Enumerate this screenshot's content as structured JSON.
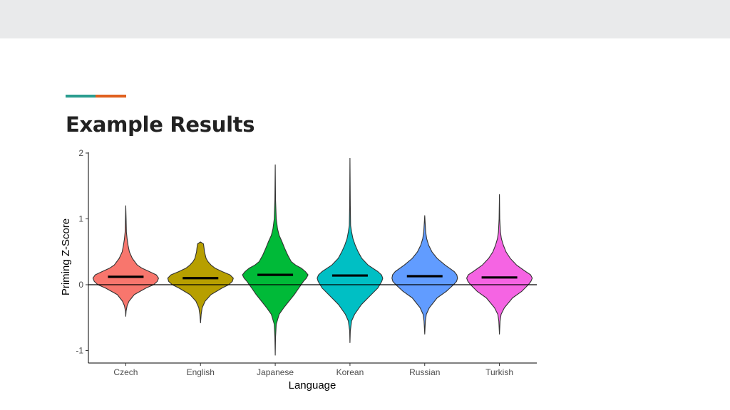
{
  "slide": {
    "title": "Example Results",
    "accent_colors": [
      "#2a9d8f",
      "#e0601e"
    ],
    "header_band_color": "#e9eaeb"
  },
  "chart_data": {
    "type": "violin",
    "xlabel": "Language",
    "ylabel": "Priming Z-Score",
    "ylim": [
      -1.2,
      2.05
    ],
    "yticks": [
      -1,
      0,
      1,
      2
    ],
    "reference_line": 0,
    "grid": false,
    "legend": "none",
    "categories": [
      "Czech",
      "English",
      "Japanese",
      "Korean",
      "Russian",
      "Turkish"
    ],
    "series": [
      {
        "category": "Czech",
        "color": "#f8766d",
        "median": 0.12,
        "min": -0.48,
        "max": 1.2,
        "profile": [
          [
            -0.48,
            0.0
          ],
          [
            -0.4,
            0.01
          ],
          [
            -0.32,
            0.04
          ],
          [
            -0.25,
            0.1
          ],
          [
            -0.15,
            0.26
          ],
          [
            -0.05,
            0.62
          ],
          [
            0.0,
            0.85
          ],
          [
            0.05,
            0.96
          ],
          [
            0.1,
            1.0
          ],
          [
            0.15,
            0.93
          ],
          [
            0.2,
            0.72
          ],
          [
            0.25,
            0.5
          ],
          [
            0.3,
            0.35
          ],
          [
            0.4,
            0.2
          ],
          [
            0.5,
            0.11
          ],
          [
            0.6,
            0.07
          ],
          [
            0.7,
            0.04
          ],
          [
            0.8,
            0.02
          ],
          [
            1.0,
            0.01
          ],
          [
            1.2,
            0.0
          ]
        ]
      },
      {
        "category": "English",
        "color": "#b79f00",
        "median": 0.1,
        "min": -0.58,
        "max": 0.65,
        "profile": [
          [
            -0.58,
            0.0
          ],
          [
            -0.45,
            0.02
          ],
          [
            -0.35,
            0.05
          ],
          [
            -0.25,
            0.14
          ],
          [
            -0.15,
            0.32
          ],
          [
            -0.05,
            0.66
          ],
          [
            0.0,
            0.86
          ],
          [
            0.05,
            0.97
          ],
          [
            0.1,
            1.0
          ],
          [
            0.15,
            0.9
          ],
          [
            0.2,
            0.66
          ],
          [
            0.25,
            0.45
          ],
          [
            0.3,
            0.32
          ],
          [
            0.35,
            0.23
          ],
          [
            0.4,
            0.17
          ],
          [
            0.5,
            0.12
          ],
          [
            0.55,
            0.11
          ],
          [
            0.62,
            0.09
          ],
          [
            0.65,
            0.0
          ]
        ]
      },
      {
        "category": "Japanese",
        "color": "#00ba38",
        "median": 0.15,
        "min": -1.07,
        "max": 1.82,
        "profile": [
          [
            -1.07,
            0.0
          ],
          [
            -0.8,
            0.01
          ],
          [
            -0.6,
            0.03
          ],
          [
            -0.45,
            0.12
          ],
          [
            -0.35,
            0.26
          ],
          [
            -0.25,
            0.42
          ],
          [
            -0.15,
            0.58
          ],
          [
            -0.05,
            0.72
          ],
          [
            0.0,
            0.79
          ],
          [
            0.05,
            0.86
          ],
          [
            0.1,
            0.95
          ],
          [
            0.15,
            1.0
          ],
          [
            0.2,
            0.92
          ],
          [
            0.25,
            0.8
          ],
          [
            0.3,
            0.62
          ],
          [
            0.35,
            0.49
          ],
          [
            0.45,
            0.38
          ],
          [
            0.55,
            0.29
          ],
          [
            0.65,
            0.21
          ],
          [
            0.75,
            0.12
          ],
          [
            0.85,
            0.07
          ],
          [
            1.0,
            0.03
          ],
          [
            1.3,
            0.01
          ],
          [
            1.82,
            0.0
          ]
        ]
      },
      {
        "category": "Korean",
        "color": "#00bfc4",
        "median": 0.14,
        "min": -0.88,
        "max": 1.92,
        "profile": [
          [
            -0.88,
            0.0
          ],
          [
            -0.7,
            0.01
          ],
          [
            -0.55,
            0.05
          ],
          [
            -0.45,
            0.14
          ],
          [
            -0.3,
            0.35
          ],
          [
            -0.15,
            0.65
          ],
          [
            -0.05,
            0.85
          ],
          [
            0.05,
            0.97
          ],
          [
            0.1,
            1.0
          ],
          [
            0.15,
            0.96
          ],
          [
            0.2,
            0.85
          ],
          [
            0.3,
            0.55
          ],
          [
            0.4,
            0.36
          ],
          [
            0.5,
            0.25
          ],
          [
            0.6,
            0.16
          ],
          [
            0.7,
            0.09
          ],
          [
            0.8,
            0.05
          ],
          [
            0.9,
            0.02
          ],
          [
            1.2,
            0.01
          ],
          [
            1.92,
            0.0
          ]
        ]
      },
      {
        "category": "Russian",
        "color": "#619cff",
        "median": 0.13,
        "min": -0.75,
        "max": 1.05,
        "profile": [
          [
            -0.75,
            0.0
          ],
          [
            -0.55,
            0.02
          ],
          [
            -0.45,
            0.05
          ],
          [
            -0.35,
            0.14
          ],
          [
            -0.2,
            0.38
          ],
          [
            -0.1,
            0.66
          ],
          [
            0.0,
            0.88
          ],
          [
            0.05,
            0.97
          ],
          [
            0.1,
            1.0
          ],
          [
            0.15,
            0.98
          ],
          [
            0.2,
            0.9
          ],
          [
            0.3,
            0.62
          ],
          [
            0.4,
            0.38
          ],
          [
            0.5,
            0.22
          ],
          [
            0.6,
            0.12
          ],
          [
            0.7,
            0.06
          ],
          [
            0.8,
            0.03
          ],
          [
            1.05,
            0.0
          ]
        ]
      },
      {
        "category": "Turkish",
        "color": "#f564e3",
        "median": 0.11,
        "min": -0.75,
        "max": 1.37,
        "profile": [
          [
            -0.75,
            0.0
          ],
          [
            -0.55,
            0.02
          ],
          [
            -0.45,
            0.05
          ],
          [
            -0.35,
            0.15
          ],
          [
            -0.2,
            0.4
          ],
          [
            -0.1,
            0.68
          ],
          [
            0.0,
            0.88
          ],
          [
            0.05,
            0.96
          ],
          [
            0.1,
            1.0
          ],
          [
            0.15,
            0.95
          ],
          [
            0.2,
            0.8
          ],
          [
            0.3,
            0.52
          ],
          [
            0.4,
            0.33
          ],
          [
            0.5,
            0.2
          ],
          [
            0.6,
            0.12
          ],
          [
            0.7,
            0.06
          ],
          [
            0.8,
            0.03
          ],
          [
            1.0,
            0.01
          ],
          [
            1.37,
            0.0
          ]
        ]
      }
    ]
  }
}
